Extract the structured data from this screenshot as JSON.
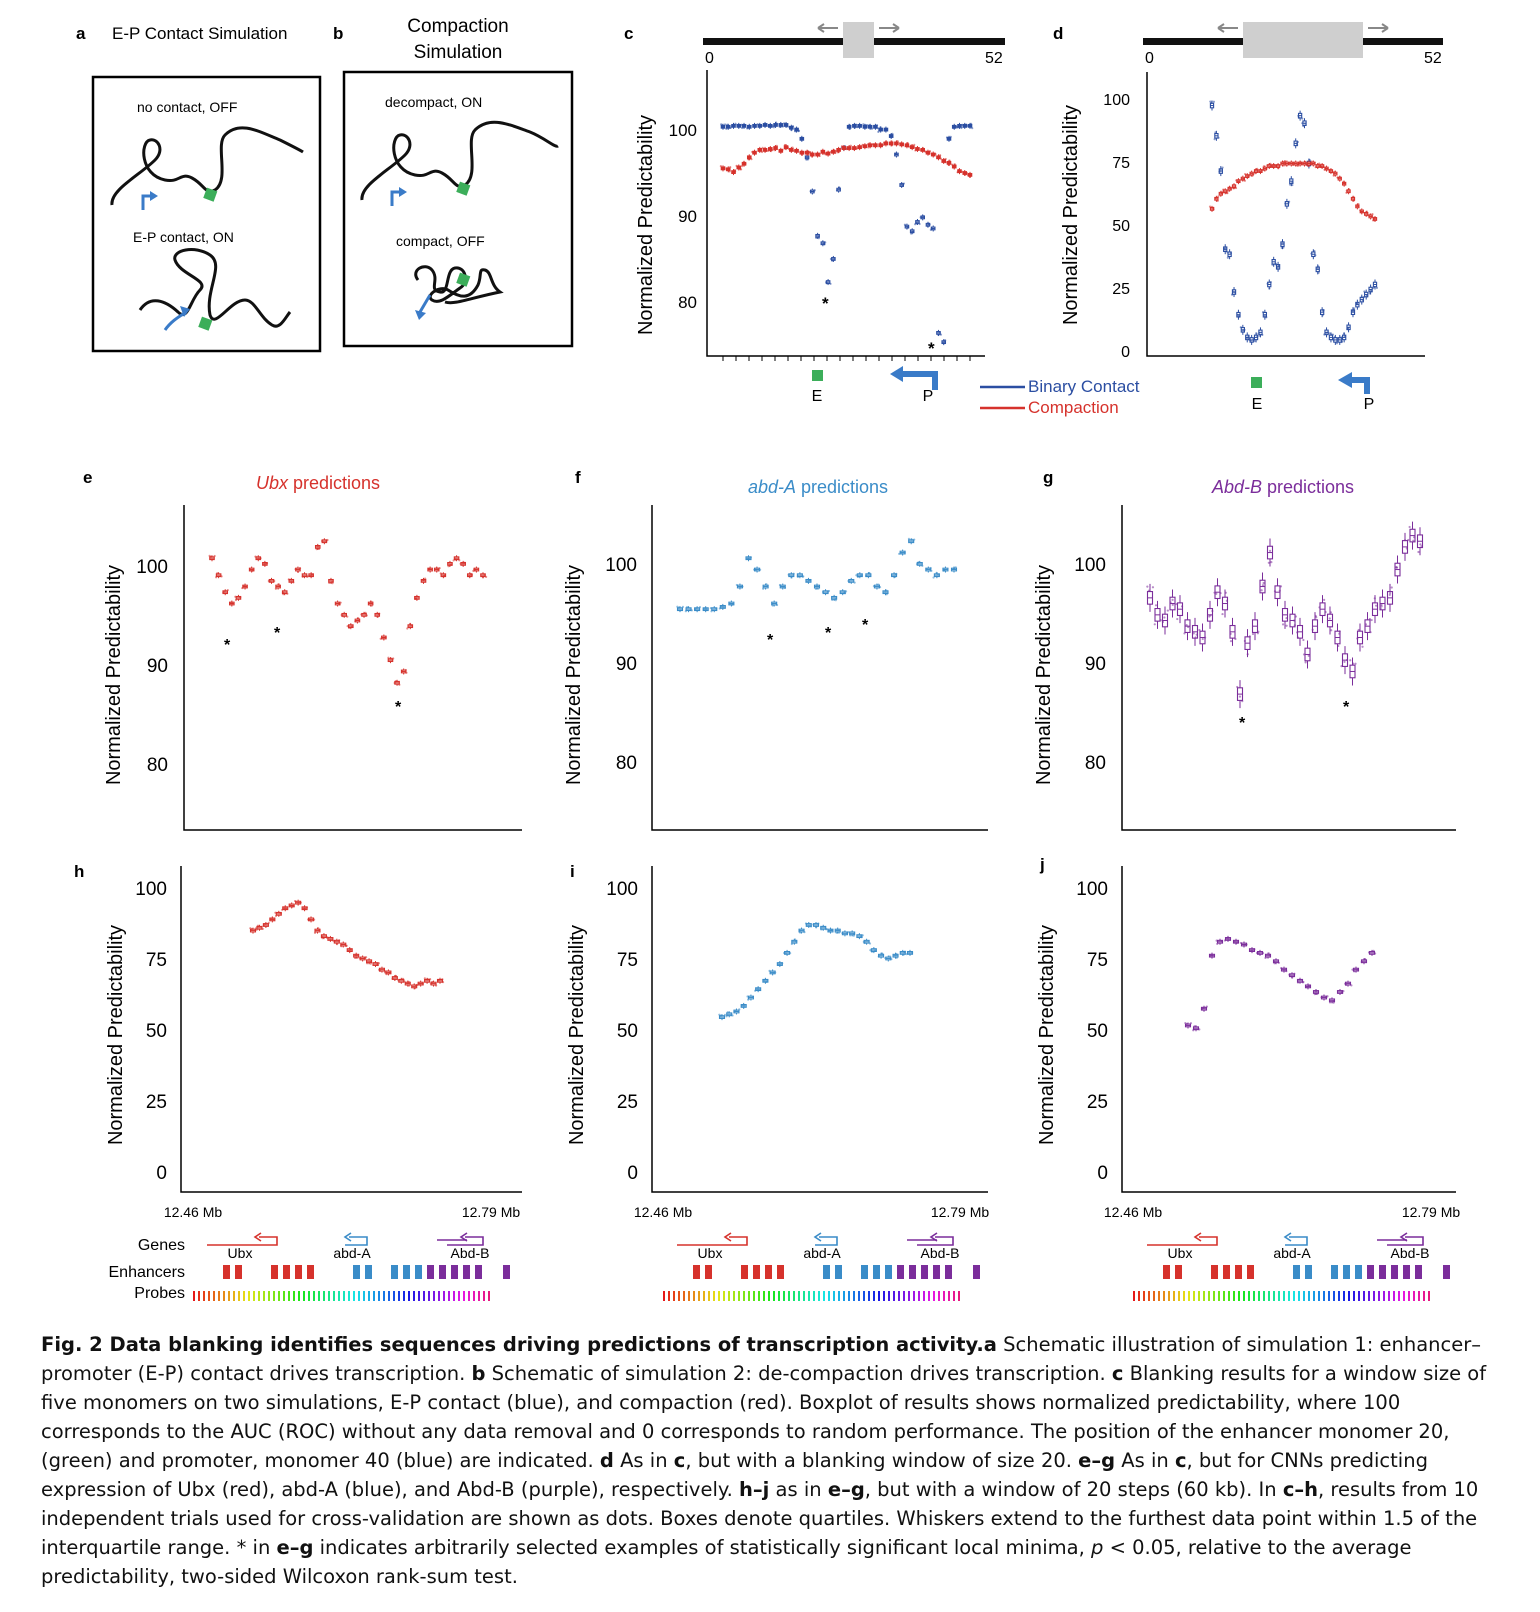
{
  "panels": {
    "a": {
      "letter": "a",
      "title": "E-P Contact Simulation",
      "label_top": "no contact, OFF",
      "label_bottom": "E-P contact, ON"
    },
    "b": {
      "letter": "b",
      "title_line1": "Compaction",
      "title_line2": "Simulation",
      "label_top": "decompact, ON",
      "label_bottom": "compact, OFF"
    },
    "c": {
      "letter": "c",
      "axis_start": "0",
      "axis_end": "52",
      "ylabel": "Normalized Predictability",
      "yticks": [
        "100",
        "90",
        "80"
      ],
      "marker_e": "E",
      "marker_p": "P",
      "star1": "*",
      "star2": "*"
    },
    "d": {
      "letter": "d",
      "axis_start": "0",
      "axis_end": "52",
      "ylabel": "Normalized Predictability",
      "yticks": [
        "100",
        "75",
        "50",
        "25",
        "0"
      ],
      "marker_e": "E",
      "marker_p": "P"
    },
    "e": {
      "letter": "e",
      "title_gene": "Ubx",
      "title_rest": " predictions",
      "ylabel": "Normalized Predictability",
      "yticks": [
        "100",
        "90",
        "80"
      ],
      "star": "*"
    },
    "f": {
      "letter": "f",
      "title_gene": "abd-A",
      "title_rest": " predictions",
      "ylabel": "Normalized Predictability",
      "yticks": [
        "100",
        "90",
        "80"
      ],
      "star": "*"
    },
    "g": {
      "letter": "g",
      "title_gene": "Abd-B",
      "title_rest": " predictions",
      "ylabel": "Normalized Predictability",
      "yticks": [
        "100",
        "90",
        "80"
      ],
      "star": "*"
    },
    "h": {
      "letter": "h",
      "ylabel": "Normalized Predictability",
      "yticks": [
        "100",
        "75",
        "50",
        "25",
        "0"
      ],
      "xstart": "12.46 Mb",
      "xend": "12.79 Mb"
    },
    "i": {
      "letter": "i",
      "ylabel": "Normalized Predictability",
      "yticks": [
        "100",
        "75",
        "50",
        "25",
        "0"
      ],
      "xstart": "12.46 Mb",
      "xend": "12.79 Mb"
    },
    "j": {
      "letter": "j",
      "ylabel": "Normalized Predictability",
      "yticks": [
        "100",
        "75",
        "50",
        "25",
        "0"
      ],
      "xstart": "12.46 Mb",
      "xend": "12.79 Mb"
    }
  },
  "legend": {
    "binary": "Binary Contact",
    "compaction": "Compaction"
  },
  "tracks": {
    "genes": "Genes",
    "enhancers": "Enhancers",
    "probes": "Probes",
    "gene1": "Ubx",
    "gene2": "abd-A",
    "gene3": "Abd-B"
  },
  "colors": {
    "red": "#d6322c",
    "blue": "#2b4ea2",
    "lightblue": "#3a8cc8",
    "purple": "#7b2d9b",
    "green": "#3cae5a",
    "gray": "#cfcfcf"
  },
  "chart_data": [
    {
      "id": "c",
      "type": "scatter",
      "title": "",
      "ylabel": "Normalized Predictability",
      "xlim": [
        0,
        52
      ],
      "series": [
        {
          "name": "Binary Contact",
          "color": "#2b4ea2",
          "x": [
            1,
            2,
            3,
            4,
            5,
            6,
            7,
            8,
            9,
            10,
            11,
            12,
            13,
            14,
            15,
            16,
            17,
            18,
            19,
            20,
            21,
            22,
            23,
            24,
            25,
            26,
            27,
            28,
            29,
            30,
            31,
            32,
            33,
            34,
            35,
            36,
            37,
            38,
            39,
            40,
            41,
            42,
            43,
            44,
            45,
            46,
            47,
            48
          ],
          "values": [
            99.8,
            99.8,
            99.9,
            99.9,
            99.9,
            99.8,
            99.9,
            99.9,
            100,
            99.9,
            100,
            100,
            100,
            99.7,
            99.5,
            98.5,
            96.5,
            92.8,
            88,
            87.2,
            83,
            85.5,
            93,
            97.5,
            99.8,
            99.9,
            99.9,
            99.8,
            99.8,
            99.8,
            99.5,
            99.5,
            98.8,
            96.8,
            93.5,
            89,
            88.5,
            89.5,
            90,
            89.2,
            88.8,
            77.5,
            76.5,
            98.5,
            99.8,
            99.9,
            99.9,
            99.9
          ]
        },
        {
          "name": "Compaction",
          "color": "#d6322c",
          "x": [
            1,
            2,
            3,
            4,
            5,
            6,
            7,
            8,
            9,
            10,
            11,
            12,
            13,
            14,
            15,
            16,
            17,
            18,
            19,
            20,
            21,
            22,
            23,
            24,
            25,
            26,
            27,
            28,
            29,
            30,
            31,
            32,
            33,
            34,
            35,
            36,
            37,
            38,
            39,
            40,
            41,
            42,
            43,
            44,
            45,
            46,
            47,
            48
          ],
          "values": [
            95.3,
            95.2,
            94.9,
            95.4,
            95.8,
            96.5,
            97,
            97.3,
            97.3,
            97.4,
            97.5,
            97.2,
            97.6,
            97.3,
            97.2,
            97,
            97,
            96.8,
            96.8,
            97.1,
            96.9,
            97.1,
            97.3,
            97.5,
            97.5,
            97.5,
            97.6,
            97.7,
            97.8,
            97.8,
            97.8,
            98,
            98,
            98,
            97.9,
            97.8,
            97.6,
            97.4,
            97.3,
            97,
            96.8,
            96.5,
            96.1,
            95.9,
            95.5,
            95,
            94.8,
            94.6
          ]
        }
      ]
    },
    {
      "id": "d",
      "type": "scatter",
      "title": "",
      "ylabel": "Normalized Predictability",
      "xlim": [
        0,
        52
      ],
      "ylim": [
        0,
        100
      ],
      "series": [
        {
          "name": "Binary Contact",
          "color": "#2b4ea2",
          "x": [
            5,
            6,
            7,
            8,
            9,
            10,
            11,
            12,
            13,
            14,
            15,
            16,
            17,
            18,
            19,
            20,
            21,
            22,
            23,
            24,
            25,
            26,
            27,
            28,
            29,
            30,
            31,
            32,
            33,
            34,
            35,
            36,
            37,
            38,
            39,
            40,
            41,
            42
          ],
          "values": [
            97,
            85,
            71,
            40,
            38,
            23,
            14,
            8,
            5,
            4,
            5,
            7,
            14,
            26,
            35,
            33,
            42,
            58,
            67,
            82,
            93,
            90,
            74,
            38,
            32,
            15,
            7,
            5,
            4,
            4,
            5,
            9,
            15,
            18,
            20,
            22,
            24,
            26
          ]
        },
        {
          "name": "Compaction",
          "color": "#d6322c",
          "x": [
            5,
            6,
            7,
            8,
            9,
            10,
            11,
            12,
            13,
            14,
            15,
            16,
            17,
            18,
            19,
            20,
            21,
            22,
            23,
            24,
            25,
            26,
            27,
            28,
            29,
            30,
            31,
            32,
            33,
            34,
            35,
            36,
            37,
            38,
            39,
            40,
            41,
            42
          ],
          "values": [
            56,
            60,
            62,
            63,
            64,
            65,
            67,
            68,
            69,
            70,
            71,
            71,
            72,
            73,
            73,
            73,
            74,
            74,
            74,
            74,
            74,
            74,
            74,
            74,
            73,
            73,
            72,
            71,
            70,
            68,
            66,
            63,
            60,
            57,
            55,
            54,
            53,
            52
          ]
        }
      ]
    },
    {
      "id": "e",
      "type": "scatter",
      "title": "Ubx predictions",
      "ylabel": "Normalized Predictability",
      "series": [
        {
          "name": "",
          "color": "#d6322c",
          "values": [
            99,
            97.5,
            96,
            95,
            95.5,
            96.5,
            98,
            99,
            98.5,
            97,
            96.5,
            96,
            97,
            98,
            97.5,
            97.5,
            100,
            100.5,
            97,
            95,
            94,
            93,
            93.5,
            94,
            95,
            94,
            92,
            90,
            88,
            89,
            93,
            95.5,
            97,
            98,
            98,
            97.5,
            98.5,
            99,
            98.5,
            97.5,
            98,
            97.5
          ]
        }
      ]
    },
    {
      "id": "f",
      "type": "scatter",
      "title": "abd-A predictions",
      "ylabel": "Normalized Predictability",
      "series": [
        {
          "name": "",
          "color": "#3a8cc8",
          "values": [
            94.5,
            94.5,
            94.5,
            94.5,
            94.5,
            94.7,
            95,
            96.5,
            99,
            98,
            96.5,
            95,
            96.5,
            97.5,
            97.5,
            97,
            96.5,
            96,
            95.5,
            96,
            97,
            97.5,
            97.5,
            96.5,
            96,
            97.5,
            99.5,
            100.5,
            98.5,
            98,
            97.5,
            98,
            98
          ]
        }
      ]
    },
    {
      "id": "g",
      "type": "scatter",
      "title": "Abd-B predictions",
      "ylabel": "Normalized Predictability",
      "series": [
        {
          "name": "",
          "color": "#7b2d9b",
          "values": [
            95.5,
            94,
            93.5,
            95,
            94.5,
            93,
            92.5,
            92,
            94,
            96,
            95,
            92.5,
            87,
            91.5,
            93,
            96.5,
            99.5,
            96,
            94,
            93.5,
            92.5,
            90.5,
            93,
            94.5,
            93.5,
            92,
            90,
            89,
            92,
            93,
            94.5,
            95,
            95.5,
            98,
            100,
            101,
            100.5
          ]
        }
      ]
    },
    {
      "id": "h",
      "type": "scatter",
      "ylabel": "Normalized Predictability",
      "xlim": [
        "12.46 Mb",
        "12.79 Mb"
      ],
      "ylim": [
        0,
        100
      ],
      "series": [
        {
          "name": "",
          "color": "#d6322c",
          "values": [
            84,
            85,
            86,
            88,
            90,
            92,
            93,
            94,
            92,
            88,
            84,
            82,
            81,
            80,
            79,
            77,
            75,
            74,
            73,
            72,
            70,
            69,
            67,
            66,
            65,
            64,
            65,
            66,
            65,
            66
          ]
        }
      ]
    },
    {
      "id": "i",
      "type": "scatter",
      "ylabel": "Normalized Predictability",
      "xlim": [
        "12.46 Mb",
        "12.79 Mb"
      ],
      "ylim": [
        0,
        100
      ],
      "series": [
        {
          "name": "",
          "color": "#3a8cc8",
          "values": [
            53,
            54,
            55,
            57,
            60,
            63,
            66,
            69,
            72,
            76,
            80,
            84,
            86,
            86,
            85,
            84,
            84,
            83,
            83,
            82,
            80,
            77,
            75,
            74,
            75,
            76,
            76
          ]
        }
      ]
    },
    {
      "id": "j",
      "type": "scatter",
      "ylabel": "Normalized Predictability",
      "xlim": [
        "12.46 Mb",
        "12.79 Mb"
      ],
      "ylim": [
        0,
        100
      ],
      "series": [
        {
          "name": "",
          "color": "#7b2d9b",
          "values": [
            50,
            49,
            56,
            75,
            80,
            81,
            80,
            79,
            77,
            76,
            75,
            73,
            70,
            68,
            66,
            64,
            62,
            60,
            59,
            62,
            65,
            70,
            73,
            76
          ]
        }
      ]
    }
  ],
  "caption": {
    "figlabel": "Fig. 2 Data blanking identifies sequences driving predictions of transcription activity.",
    "a_letter": "a",
    "a_text": " Schematic illustration of simulation 1: enhancer–promoter (E-P) contact drives transcription. ",
    "b_letter": "b",
    "b_text": " Schematic of simulation 2: de-compaction drives transcription. ",
    "c_letter": "c",
    "c_text": " Blanking results for a window size of five monomers on two simulations, E-P contact (blue), and compaction (red). Boxplot of results shows normalized predictability, where 100 corresponds to the AUC (ROC) without any data removal and 0 corresponds to random performance. The position of the enhancer monomer 20, (green) and promoter, monomer 40 (blue) are indicated. ",
    "d_letter": "d",
    "d_text1": " As in ",
    "d_ref": "c",
    "d_text2": ", but with a blanking window of size 20. ",
    "eg_letter": "e–g",
    "eg_text1": " As in ",
    "eg_ref": "c",
    "eg_text2": ", but for CNNs predicting expression of Ubx (red), abd-A (blue), and Abd-B (purple), respectively. ",
    "hj_letter": "h–j",
    "hj_text1": " as in ",
    "hj_ref": "e–g",
    "hj_text2": ", but with a window of 20 steps (60 kb). In ",
    "ch_ref": "c–h",
    "ch_text": ", results from 10 independent trials used for cross-validation are shown as dots. Boxes denote quartiles. Whiskers extend to the furthest data point within 1.5 of the interquartile range. * in ",
    "eg_ref2": "e–g",
    "end_text1": " indicates arbitrarily selected examples of statistically significant local minima, ",
    "p": "p",
    "end_text2": " < 0.05, relative to the average predictability, two-sided Wilcoxon rank-sum test."
  }
}
